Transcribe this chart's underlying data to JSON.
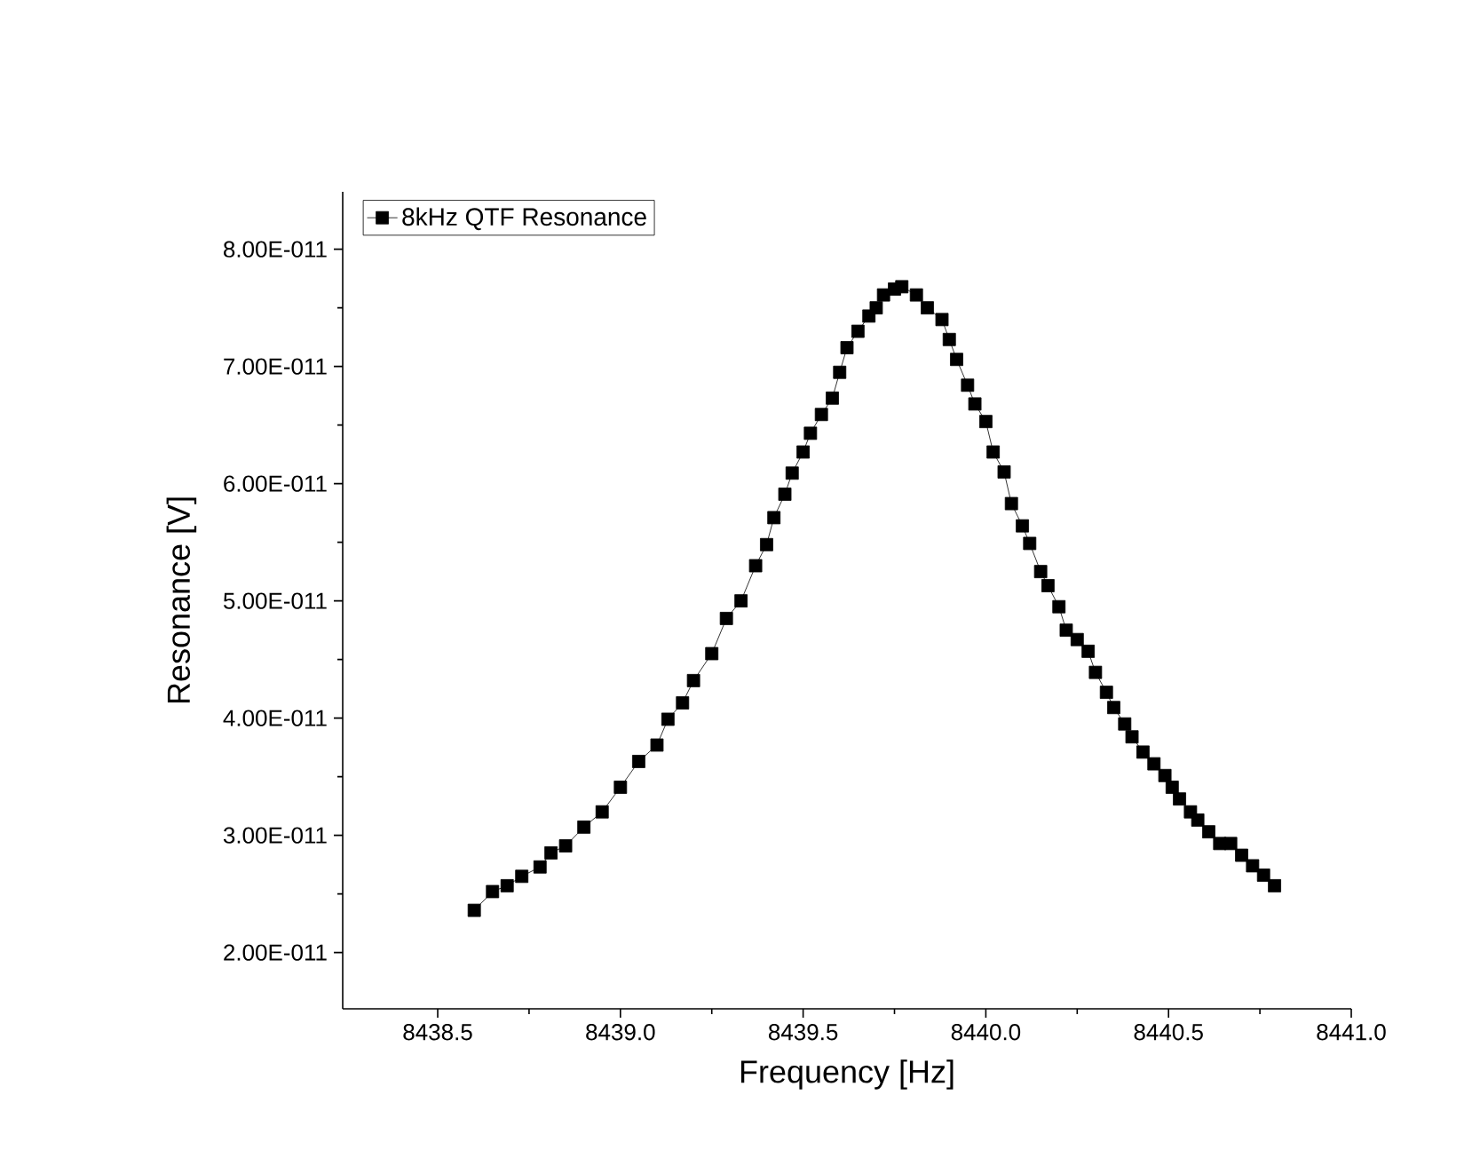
{
  "chart_data": {
    "type": "line",
    "xlabel": "Frequency [Hz]",
    "ylabel": "Resonance [V]",
    "legend": "top left",
    "marker": "square",
    "line_style": "solid",
    "xlim": [
      8438.24,
      8441.0
    ],
    "ylim": [
      1.52e-11,
      8.49e-11
    ],
    "xticks": [
      8438.5,
      {
        "value": 8439,
        "label": "8439.0"
      },
      8439.5,
      {
        "value": 8440,
        "label": "8440.0"
      },
      8440.5,
      {
        "value": 8441,
        "label": "8441.0"
      }
    ],
    "yticks": [
      {
        "value": 2e-11,
        "label": "2.00E-011"
      },
      {
        "value": 3e-11,
        "label": "3.00E-011"
      },
      {
        "value": 4e-11,
        "label": "4.00E-011"
      },
      {
        "value": 5e-11,
        "label": "5.00E-011"
      },
      {
        "value": 6e-11,
        "label": "6.00E-011"
      },
      {
        "value": 7e-11,
        "label": "7.00E-011"
      },
      {
        "value": 8e-11,
        "label": "8.00E-011"
      }
    ],
    "x": [
      8438.6,
      8438.65,
      8438.69,
      8438.73,
      8438.78,
      8438.81,
      8438.85,
      8438.9,
      8438.95,
      8439.0,
      8439.05,
      8439.1,
      8439.13,
      8439.17,
      8439.2,
      8439.25,
      8439.29,
      8439.33,
      8439.37,
      8439.4,
      8439.42,
      8439.45,
      8439.47,
      8439.5,
      8439.52,
      8439.55,
      8439.58,
      8439.6,
      8439.62,
      8439.65,
      8439.68,
      8439.7,
      8439.72,
      8439.75,
      8439.77,
      8439.81,
      8439.84,
      8439.88,
      8439.9,
      8439.92,
      8439.95,
      8439.97,
      8440.0,
      8440.02,
      8440.05,
      8440.07,
      8440.1,
      8440.12,
      8440.15,
      8440.17,
      8440.2,
      8440.22,
      8440.25,
      8440.28,
      8440.3,
      8440.33,
      8440.35,
      8440.38,
      8440.4,
      8440.43,
      8440.46,
      8440.49,
      8440.51,
      8440.53,
      8440.56,
      8440.58,
      8440.61,
      8440.64,
      8440.67,
      8440.7,
      8440.73,
      8440.76,
      8440.79
    ],
    "series": [
      {
        "name": "8kHz QTF Resonance",
        "color": "#000000",
        "values": [
          2.36e-11,
          2.52e-11,
          2.57e-11,
          2.65e-11,
          2.73e-11,
          2.85e-11,
          2.91e-11,
          3.07e-11,
          3.2e-11,
          3.41e-11,
          3.63e-11,
          3.77e-11,
          3.99e-11,
          4.13e-11,
          4.32e-11,
          4.55e-11,
          4.85e-11,
          5e-11,
          5.3e-11,
          5.48e-11,
          5.71e-11,
          5.91e-11,
          6.09e-11,
          6.27e-11,
          6.43e-11,
          6.59e-11,
          6.73e-11,
          6.95e-11,
          7.16e-11,
          7.3e-11,
          7.43e-11,
          7.5e-11,
          7.61e-11,
          7.66e-11,
          7.68e-11,
          7.61e-11,
          7.5e-11,
          7.4e-11,
          7.23e-11,
          7.06e-11,
          6.84e-11,
          6.68e-11,
          6.53e-11,
          6.27e-11,
          6.1e-11,
          5.83e-11,
          5.64e-11,
          5.49e-11,
          5.25e-11,
          5.13e-11,
          4.95e-11,
          4.75e-11,
          4.67e-11,
          4.57e-11,
          4.39e-11,
          4.22e-11,
          4.09e-11,
          3.95e-11,
          3.84e-11,
          3.71e-11,
          3.61e-11,
          3.51e-11,
          3.41e-11,
          3.31e-11,
          3.2e-11,
          3.13e-11,
          3.03e-11,
          2.93e-11,
          2.93e-11,
          2.83e-11,
          2.74e-11,
          2.66e-11,
          2.57e-11
        ]
      }
    ]
  }
}
